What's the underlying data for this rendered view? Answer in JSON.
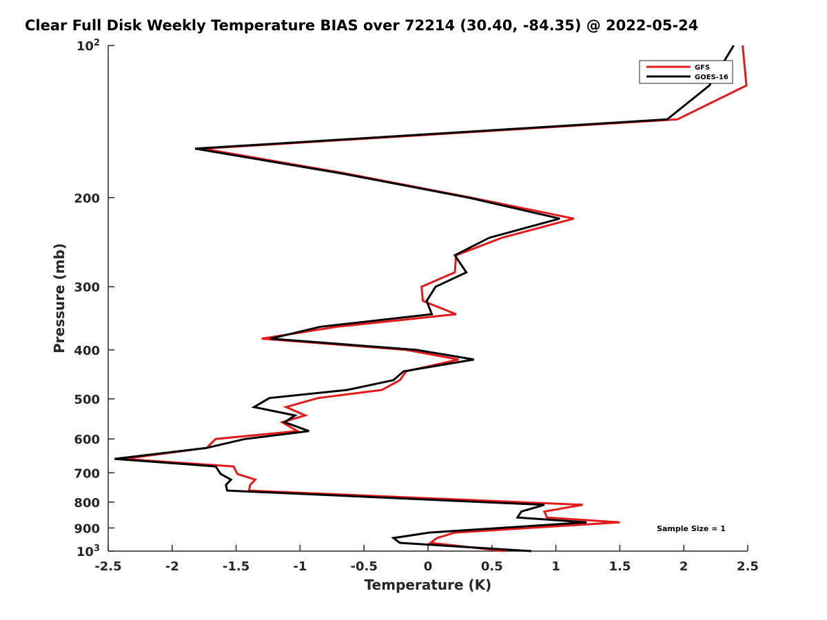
{
  "chart_data": {
    "type": "line",
    "title": "Clear Full Disk Weekly Temperature BIAS over 72214 (30.40, -84.35) @ 2022-05-24",
    "xlabel": "Temperature (K)",
    "ylabel": "Pressure (mb)",
    "xlim": [
      -2.5,
      2.5
    ],
    "ylim": [
      100,
      1000
    ],
    "yscale": "log",
    "y_reversed": true,
    "grid": false,
    "legend_placement": "top-right",
    "xticks": [
      "-2.5",
      "-2",
      "-1.5",
      "-1",
      "-0.5",
      "0",
      "0.5",
      "1",
      "1.5",
      "2",
      "2.5"
    ],
    "yticks": [
      {
        "value": 100,
        "label": "10",
        "sup": "2"
      },
      {
        "value": 200,
        "label": "200"
      },
      {
        "value": 300,
        "label": "300"
      },
      {
        "value": 400,
        "label": "400"
      },
      {
        "value": 500,
        "label": "500"
      },
      {
        "value": 600,
        "label": "600"
      },
      {
        "value": 700,
        "label": "700"
      },
      {
        "value": 800,
        "label": "800"
      },
      {
        "value": 900,
        "label": "900"
      },
      {
        "value": 1000,
        "label": "10",
        "sup": "3"
      }
    ],
    "annotation": "Sample Size = 1",
    "pressure": [
      100,
      120,
      140,
      160,
      179,
      200,
      220,
      240,
      260,
      281,
      300,
      320,
      340,
      360,
      380,
      400,
      418,
      441,
      459,
      480,
      498,
      519,
      539,
      556,
      579,
      600,
      625,
      657,
      680,
      704,
      722,
      740,
      759,
      810,
      835,
      858,
      877,
      919,
      942,
      963,
      1000
    ],
    "series": [
      {
        "name": "GFS",
        "color": "#e41a1a",
        "values": [
          2.46,
          2.49,
          1.95,
          -1.76,
          -0.65,
          0.34,
          1.14,
          0.58,
          0.22,
          0.21,
          -0.05,
          -0.04,
          0.22,
          -0.71,
          -1.3,
          -0.17,
          0.24,
          -0.17,
          -0.22,
          -0.36,
          -0.86,
          -1.11,
          -0.96,
          -1.14,
          -1.02,
          -1.66,
          -1.73,
          -2.38,
          -1.52,
          -1.49,
          -1.35,
          -1.39,
          -1.4,
          1.21,
          0.91,
          0.93,
          1.5,
          0.21,
          0.07,
          0.02,
          0.6
        ]
      },
      {
        "name": "GOES-16",
        "color": "#000000",
        "values": [
          2.39,
          2.2,
          1.87,
          -1.82,
          -0.68,
          0.32,
          1.03,
          0.48,
          0.21,
          0.3,
          0.06,
          -0.01,
          0.03,
          -0.84,
          -1.23,
          -0.09,
          0.36,
          -0.19,
          -0.27,
          -0.63,
          -1.24,
          -1.36,
          -1.04,
          -1.12,
          -0.93,
          -1.43,
          -1.73,
          -2.45,
          -1.66,
          -1.62,
          -1.54,
          -1.58,
          -1.57,
          0.91,
          0.73,
          0.7,
          1.24,
          0.01,
          -0.27,
          -0.22,
          0.81
        ]
      }
    ]
  }
}
